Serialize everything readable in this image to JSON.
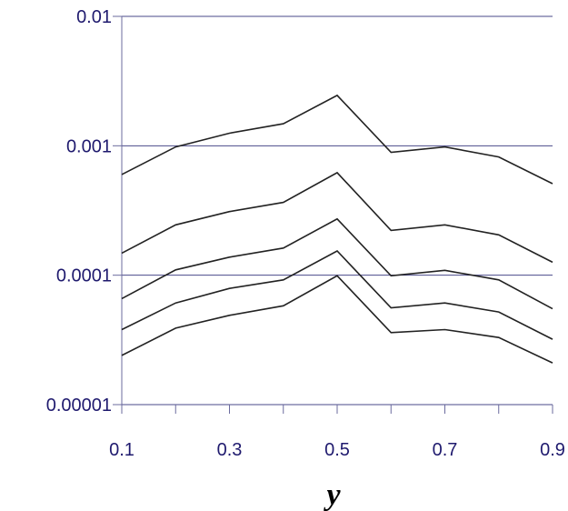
{
  "chart_data": {
    "type": "line",
    "title": "",
    "xlabel": "y",
    "ylabel": "",
    "x": [
      0.1,
      0.2,
      0.3,
      0.4,
      0.5,
      0.6,
      0.7,
      0.8,
      0.9
    ],
    "xlim": [
      0.1,
      0.9
    ],
    "ylim": [
      1e-05,
      0.01
    ],
    "yscale": "log",
    "grid": "horizontal",
    "x_tick_labels": [
      "0.1",
      "0.3",
      "0.5",
      "0.7",
      "0.9"
    ],
    "x_tick_values": [
      0.1,
      0.3,
      0.5,
      0.7,
      0.9
    ],
    "y_tick_labels": [
      "0.00001",
      "0.0001",
      "0.001",
      "0.01"
    ],
    "y_tick_values": [
      1e-05,
      0.0001,
      0.001,
      0.01
    ],
    "series": [
      {
        "values": [
          0.0006,
          0.00098,
          0.00125,
          0.00148,
          0.00245,
          0.00089,
          0.00098,
          0.00082,
          0.00051
        ]
      },
      {
        "values": [
          0.000148,
          0.000245,
          0.00031,
          0.000365,
          0.00062,
          0.000222,
          0.000245,
          0.000205,
          0.000126
        ]
      },
      {
        "values": [
          6.6e-05,
          0.00011,
          0.000138,
          0.000162,
          0.000272,
          9.9e-05,
          0.000109,
          9.2e-05,
          5.5e-05
        ]
      },
      {
        "values": [
          3.8e-05,
          6.1e-05,
          7.9e-05,
          9.2e-05,
          0.000154,
          5.6e-05,
          6.1e-05,
          5.2e-05,
          3.2e-05
        ]
      },
      {
        "values": [
          2.4e-05,
          3.9e-05,
          4.9e-05,
          5.8e-05,
          9.9e-05,
          3.6e-05,
          3.8e-05,
          3.3e-05,
          2.1e-05
        ]
      }
    ],
    "colors": {
      "axis": "#6b6b9e",
      "grid": "#4a4a8a",
      "line": "#222222",
      "tick_text": "#1f1a6e"
    }
  }
}
